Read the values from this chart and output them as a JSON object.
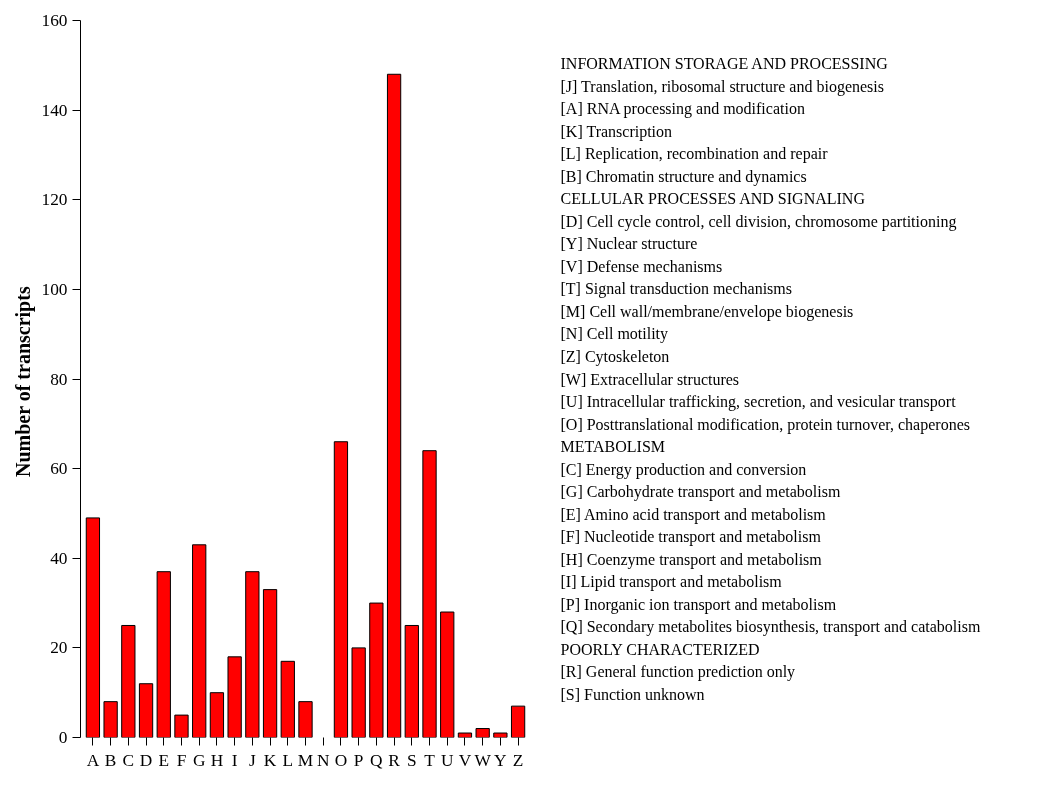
{
  "chart_data": {
    "type": "bar",
    "ylabel": "Number of  transcripts",
    "categories": [
      "A",
      "B",
      "C",
      "D",
      "E",
      "F",
      "G",
      "H",
      "I",
      "J",
      "K",
      "L",
      "M",
      "N",
      "O",
      "P",
      "Q",
      "R",
      "S",
      "T",
      "U",
      "V",
      "W",
      "Y",
      "Z"
    ],
    "values": [
      49,
      8,
      25,
      12,
      37,
      5,
      43,
      10,
      18,
      37,
      33,
      17,
      8,
      0,
      66,
      20,
      30,
      148,
      25,
      64,
      28,
      1,
      2,
      1,
      7
    ],
    "color": "#ff0000",
    "ylim": [
      0,
      160
    ],
    "yticks": [
      0,
      20,
      40,
      60,
      80,
      100,
      120,
      140,
      160
    ],
    "grid": false,
    "annotations": [
      "INFORMATION STORAGE AND PROCESSING",
      "[J] Translation, ribosomal structure and biogenesis",
      "[A] RNA processing and modification",
      "[K] Transcription",
      "[L] Replication, recombination and repair",
      "[B] Chromatin structure and dynamics",
      "CELLULAR PROCESSES AND SIGNALING",
      "[D] Cell cycle control, cell division, chromosome partitioning",
      "[Y] Nuclear structure",
      "[V] Defense mechanisms",
      "[T] Signal transduction mechanisms",
      "[M] Cell wall/membrane/envelope biogenesis",
      "[N] Cell motility",
      "[Z] Cytoskeleton",
      "[W] Extracellular structures",
      "[U] Intracellular trafficking, secretion, and vesicular transport",
      "[O] Posttranslational modification, protein turnover, chaperones",
      "METABOLISM",
      "[C] Energy production and conversion",
      "[G] Carbohydrate transport and metabolism",
      "[E] Amino acid transport and metabolism",
      "[F] Nucleotide transport and metabolism",
      "[H] Coenzyme transport and metabolism",
      "[I] Lipid transport and metabolism",
      "[P] Inorganic ion transport and metabolism",
      "[Q] Secondary metabolites biosynthesis, transport and catabolism",
      "POORLY CHARACTERIZED",
      "[R] General function prediction only",
      "[S] Function unknown"
    ]
  }
}
